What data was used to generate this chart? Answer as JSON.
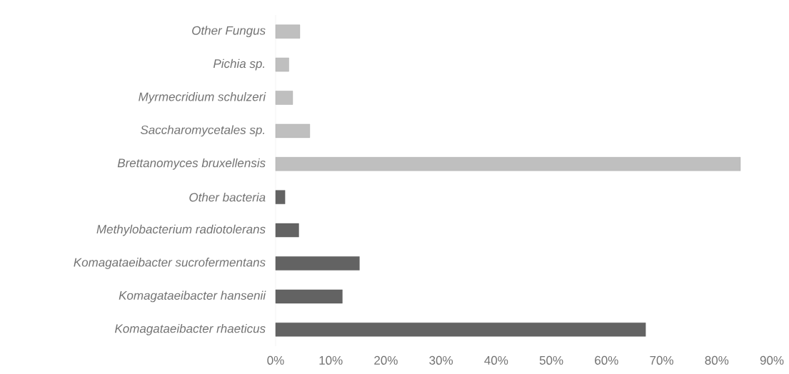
{
  "chart_data": {
    "type": "bar",
    "orientation": "horizontal",
    "categories": [
      "Other Fungus",
      "Pichia sp.",
      "Myrmecridium schulzeri",
      "Saccharomycetales sp.",
      "Brettanomyces bruxellensis",
      "Other bacteria",
      "Methylobacterium radiotolerans",
      "Komagataeibacter sucrofermentans",
      "Komagataeibacter hansenii",
      "Komagataeibacter rhaeticus"
    ],
    "values": [
      4.4,
      2.4,
      3.1,
      6.2,
      84.3,
      1.7,
      4.2,
      15.2,
      12.1,
      67.1
    ],
    "colors": [
      "#bfbfbf",
      "#bfbfbf",
      "#bfbfbf",
      "#bfbfbf",
      "#bfbfbf",
      "#636363",
      "#636363",
      "#636363",
      "#636363",
      "#636363"
    ],
    "xlim": [
      0,
      90
    ],
    "xticks": [
      {
        "value": 0,
        "label": "0%"
      },
      {
        "value": 10,
        "label": "10%"
      },
      {
        "value": 20,
        "label": "20%"
      },
      {
        "value": 30,
        "label": "30%"
      },
      {
        "value": 40,
        "label": "40%"
      },
      {
        "value": 50,
        "label": "50%"
      },
      {
        "value": 60,
        "label": "60%"
      },
      {
        "value": 70,
        "label": "70%"
      },
      {
        "value": 80,
        "label": "80%"
      },
      {
        "value": 90,
        "label": "90%"
      }
    ]
  }
}
